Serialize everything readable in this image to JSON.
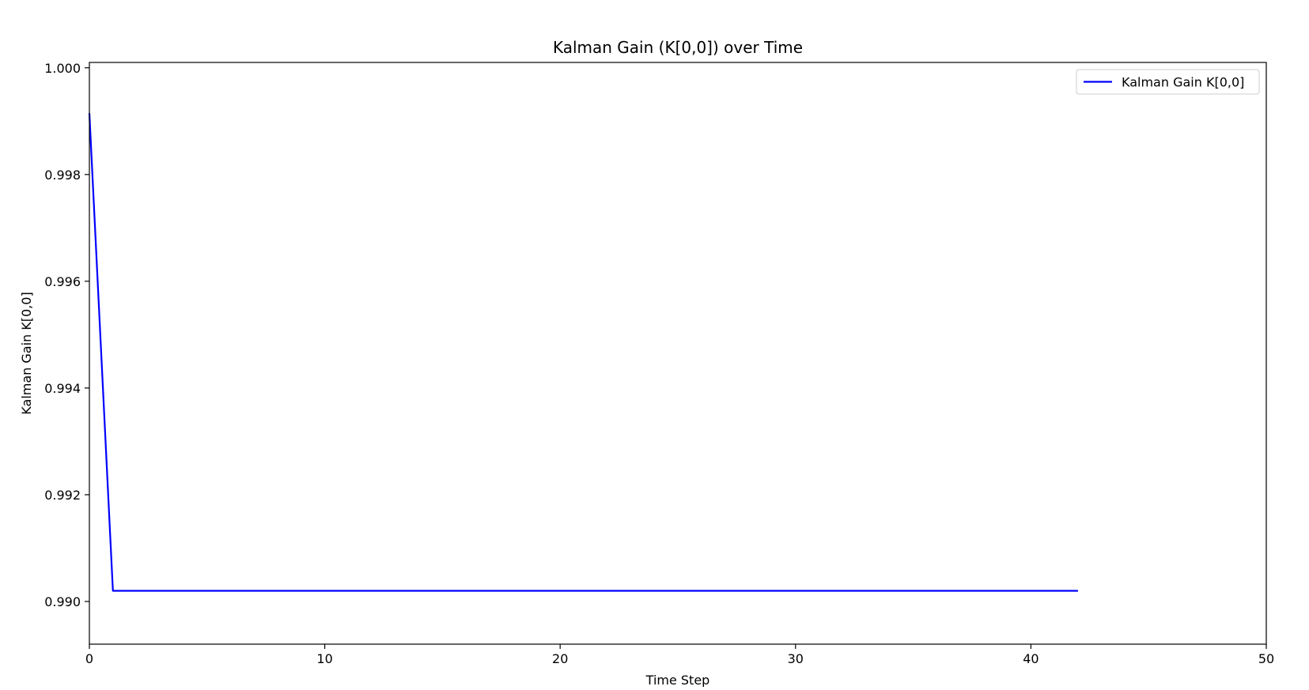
{
  "chart_data": {
    "type": "line",
    "title": "Kalman Gain (K[0,0]) over Time",
    "xlabel": "Time Step",
    "ylabel": "Kalman Gain K[0,0]",
    "xlim": [
      0,
      50
    ],
    "ylim": [
      0.9892,
      1.0001
    ],
    "xticks": [
      0,
      10,
      20,
      30,
      40,
      50
    ],
    "xtick_labels": [
      "0",
      "10",
      "20",
      "30",
      "40",
      "50"
    ],
    "yticks": [
      0.99,
      0.992,
      0.994,
      0.996,
      0.998,
      1.0
    ],
    "ytick_labels": [
      "0.990",
      "0.992",
      "0.994",
      "0.996",
      "0.998",
      "1.000"
    ],
    "grid": false,
    "legend_position": "top-right",
    "series": [
      {
        "name": "Kalman Gain K[0,0]",
        "color": "#0000ff",
        "x": [
          0,
          1,
          2,
          3,
          4,
          5,
          6,
          7,
          8,
          9,
          10,
          11,
          12,
          13,
          14,
          15,
          16,
          17,
          18,
          19,
          20,
          21,
          22,
          23,
          24,
          25,
          26,
          27,
          28,
          29,
          30,
          31,
          32,
          33,
          34,
          35,
          36,
          37,
          38,
          39,
          40,
          41,
          42
        ],
        "values": [
          0.99915,
          0.9902,
          0.9902,
          0.9902,
          0.9902,
          0.9902,
          0.9902,
          0.9902,
          0.9902,
          0.9902,
          0.9902,
          0.9902,
          0.9902,
          0.9902,
          0.9902,
          0.9902,
          0.9902,
          0.9902,
          0.9902,
          0.9902,
          0.9902,
          0.9902,
          0.9902,
          0.9902,
          0.9902,
          0.9902,
          0.9902,
          0.9902,
          0.9902,
          0.9902,
          0.9902,
          0.9902,
          0.9902,
          0.9902,
          0.9902,
          0.9902,
          0.9902,
          0.9902,
          0.9902,
          0.9902,
          0.9902,
          0.9902,
          0.9902
        ]
      }
    ]
  }
}
